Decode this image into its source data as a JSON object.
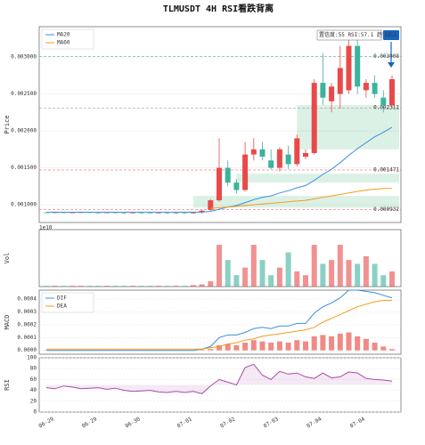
{
  "chart_data": [
    {
      "type": "candlestick",
      "title": "TLMUSDT  4H  RSI看跌背离",
      "ylabel": "Price",
      "ylim": [
        0.00076,
        0.00341
      ],
      "yticks": [
        {
          "value": 0.001,
          "label": "0.001000"
        },
        {
          "value": 0.0015,
          "label": "0.001500"
        },
        {
          "value": 0.002,
          "label": "0.002000"
        },
        {
          "value": 0.0025,
          "label": "0.002500"
        },
        {
          "value": 0.003,
          "label": "0.003000"
        }
      ],
      "grid": true,
      "up_color": "#e84a4a",
      "down_color": "#3cb39d",
      "legend": "upper left",
      "open": [
        0.000895,
        0.000893,
        0.000896,
        0.000892,
        0.000894,
        0.000897,
        0.000893,
        0.000891,
        0.000895,
        0.00089,
        0.000888,
        0.000892,
        0.000889,
        0.000887,
        0.00089,
        0.000886,
        0.000889,
        0.000885,
        0.0009,
        0.00093,
        0.00106,
        0.0015,
        0.0013,
        0.0012,
        0.00168,
        0.00175,
        0.0016,
        0.0015,
        0.00168,
        0.00155,
        0.00165,
        0.0017,
        0.00265,
        0.0024,
        0.0025,
        0.00255,
        0.00315,
        0.00255,
        0.00265,
        0.00245,
        0.00235
      ],
      "high": [
        0.0009,
        0.000901,
        0.000901,
        0.000899,
        0.000902,
        0.000902,
        0.000898,
        0.0009,
        0.0009,
        0.000895,
        0.000897,
        0.000897,
        0.000894,
        0.000895,
        0.000895,
        0.000894,
        0.000894,
        0.000905,
        0.00093,
        0.00108,
        0.0019,
        0.0016,
        0.00135,
        0.00185,
        0.0019,
        0.00185,
        0.00175,
        0.00178,
        0.0018,
        0.00195,
        0.00175,
        0.0027,
        0.00305,
        0.00265,
        0.00315,
        0.0033,
        0.00325,
        0.0027,
        0.00275,
        0.00255,
        0.00275
      ],
      "low": [
        0.000888,
        0.000888,
        0.000887,
        0.000887,
        0.000889,
        0.000888,
        0.000886,
        0.000886,
        0.000885,
        0.000883,
        0.000883,
        0.000884,
        0.000882,
        0.000882,
        0.000881,
        0.000881,
        0.00088,
        0.00088,
        0.00088,
        0.00092,
        0.00104,
        0.00125,
        0.00115,
        0.00118,
        0.0016,
        0.0016,
        0.00148,
        0.00145,
        0.00148,
        0.00152,
        0.00162,
        0.00168,
        0.00235,
        0.00225,
        0.0023,
        0.0025,
        0.0025,
        0.00245,
        0.00245,
        0.00225,
        0.00232
      ],
      "close": [
        0.000893,
        0.000896,
        0.000892,
        0.000894,
        0.000897,
        0.000893,
        0.000891,
        0.000895,
        0.00089,
        0.000888,
        0.000892,
        0.000889,
        0.000887,
        0.00089,
        0.000886,
        0.000889,
        0.000885,
        0.0009,
        0.00092,
        0.00106,
        0.0015,
        0.0013,
        0.0012,
        0.00168,
        0.00175,
        0.00165,
        0.0015,
        0.00175,
        0.00155,
        0.0019,
        0.0017,
        0.00265,
        0.00245,
        0.0026,
        0.00285,
        0.00315,
        0.0026,
        0.00265,
        0.0025,
        0.00235,
        0.0027
      ],
      "series": [
        {
          "name": "MA20",
          "color": "#3b8fd9",
          "values": [
            0.0009,
            0.0009,
            0.0009,
            0.0009,
            0.0009,
            0.0009,
            0.0009,
            0.0009,
            0.0009,
            0.0009,
            0.0009,
            0.0009,
            0.0009,
            0.0009,
            0.0009,
            0.0009,
            0.0009,
            0.0009,
            0.0009,
            0.00091,
            0.00094,
            0.00097,
            0.00099,
            0.00103,
            0.00107,
            0.0011,
            0.00112,
            0.00116,
            0.00119,
            0.00123,
            0.00126,
            0.00133,
            0.00141,
            0.00148,
            0.00157,
            0.00167,
            0.00176,
            0.00184,
            0.00192,
            0.00198,
            0.00205
          ]
        },
        {
          "name": "MA60",
          "color": "#f39c1f",
          "values": [
            null,
            null,
            null,
            null,
            null,
            null,
            null,
            null,
            null,
            null,
            null,
            null,
            null,
            null,
            null,
            null,
            null,
            null,
            null,
            0.00095,
            0.00096,
            0.00097,
            0.00098,
            0.00099,
            0.001,
            0.00101,
            0.00102,
            0.00103,
            0.00104,
            0.00105,
            0.00106,
            0.00108,
            0.0011,
            0.00112,
            0.00114,
            0.00116,
            0.00118,
            0.0012,
            0.00121,
            0.00122,
            0.00122
          ]
        }
      ],
      "levels": [
        0.003008,
        0.002311,
        0.001471,
        0.000932
      ],
      "level_colors": [
        "#2ca58d",
        "#888888",
        "#e84a4a",
        "#e84a4a"
      ],
      "zones": [
        {
          "start": 29,
          "low": 0.00175,
          "high": 0.00235
        },
        {
          "start": 22,
          "low": 0.0013,
          "high": 0.00142
        },
        {
          "start": 17,
          "low": 0.00096,
          "high": 0.00112
        }
      ],
      "zone_color": "#3cb371",
      "annotation": {
        "text": "置信度:55 RSI:57.1 趋势:",
        "signal": "SELL",
        "signal_color": "#1565c0"
      }
    },
    {
      "type": "bar",
      "ylabel": "Vol",
      "offset_label": "1e10",
      "ylim": [
        0,
        0.75
      ],
      "values": [
        0.01,
        0.01,
        0.01,
        0.01,
        0.01,
        0.01,
        0.01,
        0.01,
        0.01,
        0.01,
        0.01,
        0.01,
        0.01,
        0.01,
        0.01,
        0.01,
        0.01,
        0.02,
        0.03,
        0.07,
        0.55,
        0.35,
        0.15,
        0.25,
        0.55,
        0.35,
        0.15,
        0.25,
        0.45,
        0.2,
        0.15,
        0.55,
        0.3,
        0.35,
        0.55,
        0.35,
        0.3,
        0.4,
        0.3,
        0.15,
        0.2
      ]
    },
    {
      "type": "macd",
      "ylabel": "MACD",
      "ylim": [
        -3e-05,
        0.00047
      ],
      "legend": "upper left",
      "yticks": [
        {
          "value": 0,
          "label": "0.0000"
        },
        {
          "value": 0.0001,
          "label": "0.0001"
        },
        {
          "value": 0.0002,
          "label": "0.0002"
        },
        {
          "value": 0.0003,
          "label": "0.0003"
        },
        {
          "value": 0.0004,
          "label": "0.0004"
        }
      ],
      "series": [
        {
          "name": "DIF",
          "color": "#3b8fd9",
          "values": [
            0,
            0,
            0,
            0,
            0,
            0,
            0,
            0,
            0,
            0,
            0,
            0,
            0,
            0,
            0,
            0,
            0,
            0,
            1e-05,
            3e-05,
            0.0001,
            0.00012,
            0.00012,
            0.00014,
            0.00017,
            0.00018,
            0.00017,
            0.00019,
            0.00019,
            0.00021,
            0.00021,
            0.00029,
            0.00034,
            0.00037,
            0.00041,
            0.00047,
            0.00047,
            0.00046,
            0.00045,
            0.00043,
            0.00041
          ]
        },
        {
          "name": "DEA",
          "color": "#f39c1f",
          "values": [
            1e-05,
            1e-05,
            1e-05,
            1e-05,
            1e-05,
            1e-05,
            1e-05,
            1e-05,
            1e-05,
            1e-05,
            1e-05,
            1e-05,
            1e-05,
            1e-05,
            1e-05,
            1e-05,
            1e-05,
            1e-05,
            1e-05,
            2e-05,
            3e-05,
            5e-05,
            6e-05,
            8e-05,
            9e-05,
            0.00011,
            0.00012,
            0.00013,
            0.00014,
            0.00015,
            0.00016,
            0.00018,
            0.00022,
            0.00025,
            0.00028,
            0.00031,
            0.00034,
            0.00036,
            0.00038,
            0.00039,
            0.00039
          ]
        }
      ],
      "hist_color": "#f08a84",
      "values": [
        2e-06,
        2e-06,
        2e-06,
        2e-06,
        2e-06,
        2e-06,
        2e-06,
        2e-06,
        2e-06,
        2e-06,
        2e-06,
        2e-06,
        2e-06,
        2e-06,
        2e-06,
        2e-06,
        2e-06,
        2e-06,
        5e-06,
        1e-05,
        4e-05,
        5e-05,
        4e-05,
        6e-05,
        8e-05,
        7e-05,
        6e-05,
        7e-05,
        6e-05,
        8e-05,
        7e-05,
        0.00011,
        0.00012,
        0.00011,
        0.00013,
        0.00014,
        0.00011,
        9e-05,
        6e-05,
        3e-05,
        1e-05
      ]
    },
    {
      "type": "line",
      "ylabel": "RSI",
      "ylim": [
        0,
        100
      ],
      "yticks": [
        0,
        20,
        40,
        60,
        80,
        100
      ],
      "color": "#a64ca6",
      "values": [
        45,
        43,
        48,
        46,
        43,
        44,
        45,
        42,
        44,
        40,
        38,
        39,
        40,
        37,
        36,
        38,
        36,
        38,
        34,
        48,
        60,
        55,
        50,
        82,
        88,
        68,
        60,
        75,
        70,
        72,
        65,
        62,
        72,
        63,
        65,
        74,
        72,
        62,
        60,
        59,
        57
      ],
      "categories": [
        "06-29",
        null,
        null,
        null,
        null,
        "06-29",
        null,
        null,
        null,
        null,
        "06-30",
        null,
        null,
        null,
        null,
        null,
        "07-01",
        null,
        null,
        null,
        null,
        "07-02",
        null,
        null,
        null,
        null,
        "07-03",
        null,
        null,
        null,
        null,
        "07-04",
        null,
        null,
        null,
        null,
        "07-04",
        null,
        null,
        null,
        null
      ]
    }
  ]
}
